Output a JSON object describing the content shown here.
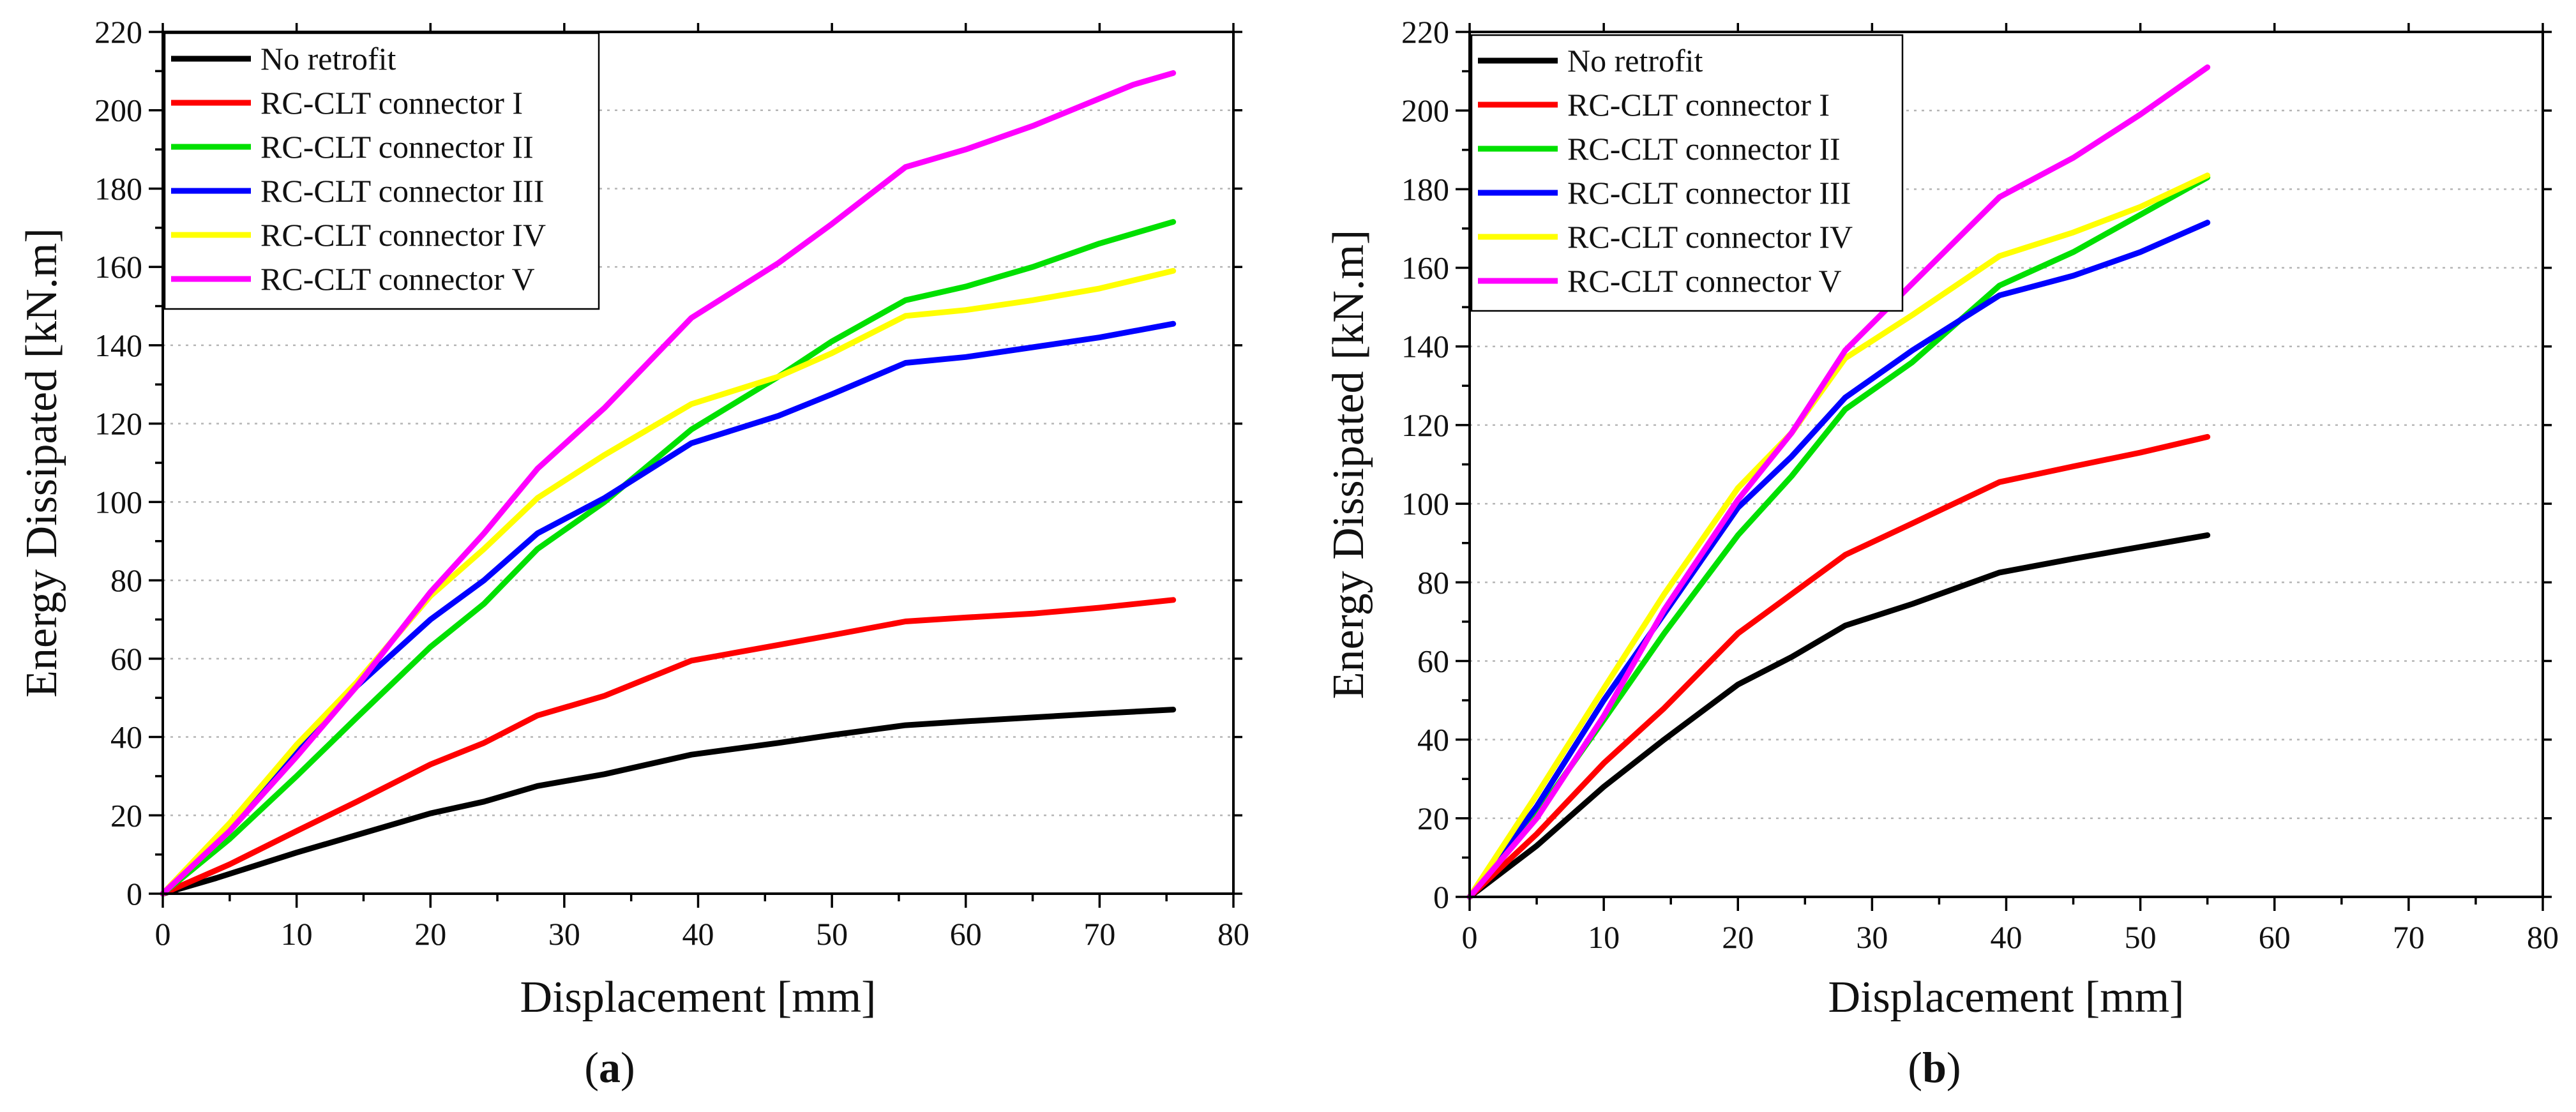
{
  "chart_data": [
    {
      "type": "line",
      "panel_label": {
        "open": "(",
        "letter": "a",
        "close": ")"
      },
      "xlabel": "Displacement [mm]",
      "ylabel": "Energy Dissipated [kN.m]",
      "xlim": [
        0,
        80
      ],
      "ylim": [
        0,
        220
      ],
      "xticks": [
        0,
        10,
        20,
        30,
        40,
        50,
        60,
        70,
        80
      ],
      "yticks": [
        0,
        20,
        40,
        60,
        80,
        100,
        120,
        140,
        160,
        180,
        200,
        220
      ],
      "grid": "horizontal dotted",
      "legend_position": "top-left",
      "series": [
        {
          "name": "No retrofit",
          "color": "#000000",
          "x": [
            0,
            4,
            10,
            14.5,
            20,
            24,
            28,
            33,
            39.5,
            46,
            50,
            55.5,
            60,
            65,
            70,
            75.5
          ],
          "y": [
            0,
            4,
            10.5,
            15,
            20.5,
            23.5,
            27.5,
            30.5,
            35.5,
            38.5,
            40.5,
            43,
            44,
            45,
            46,
            47
          ]
        },
        {
          "name": "RC-CLT connector I",
          "color": "#ff0000",
          "x": [
            0,
            5,
            10,
            14.5,
            20,
            24,
            28,
            33,
            39.5,
            46,
            50,
            55.5,
            60,
            65,
            70,
            75.5
          ],
          "y": [
            0,
            7.5,
            16,
            23.5,
            33,
            38.5,
            45.5,
            50.5,
            59.5,
            63.5,
            66,
            69.5,
            70.5,
            71.5,
            73,
            75
          ]
        },
        {
          "name": "RC-CLT connector II",
          "color": "#00e000",
          "x": [
            0,
            5,
            10,
            14.5,
            20,
            24,
            28,
            33,
            39.5,
            46,
            50,
            55.5,
            60,
            65,
            70,
            75.5
          ],
          "y": [
            0,
            14,
            30,
            45,
            63,
            74,
            88,
            100,
            118.5,
            132,
            141,
            151.5,
            155,
            160,
            166,
            171.5
          ]
        },
        {
          "name": "RC-CLT connector III",
          "color": "#0000ff",
          "x": [
            0,
            5,
            10,
            14.5,
            20,
            24,
            28,
            33,
            39.5,
            46,
            50,
            55.5,
            60,
            65,
            70,
            75.5
          ],
          "y": [
            0,
            17,
            36,
            53,
            70,
            80,
            92,
            101,
            115,
            122,
            127.5,
            135.5,
            137,
            139.5,
            142,
            145.5
          ]
        },
        {
          "name": "RC-CLT connector IV",
          "color": "#ffff00",
          "x": [
            0,
            5,
            10,
            14.5,
            20,
            24,
            28,
            33,
            39.5,
            46,
            50,
            55.5,
            60,
            65,
            70,
            75.5
          ],
          "y": [
            0,
            18,
            38,
            54,
            76,
            88,
            101,
            112,
            125,
            132,
            138,
            147.5,
            149,
            151.5,
            154.5,
            159
          ]
        },
        {
          "name": "RC-CLT connector V",
          "color": "#ff00ff",
          "x": [
            0,
            5,
            10,
            14.5,
            20,
            24,
            28,
            33,
            39.5,
            46,
            50,
            55.5,
            60,
            65,
            70,
            72.5,
            75.5
          ],
          "y": [
            0,
            16,
            35,
            53,
            77,
            92,
            108.5,
            124,
            147,
            161,
            171,
            185.5,
            190,
            196,
            203,
            206.5,
            209.5
          ]
        }
      ]
    },
    {
      "type": "line",
      "panel_label": {
        "open": "(",
        "letter": "b",
        "close": ")"
      },
      "xlabel": "Displacement [mm]",
      "ylabel": "Energy Dissipated [kN.m]",
      "xlim": [
        0,
        80
      ],
      "ylim": [
        0,
        220
      ],
      "xticks": [
        0,
        10,
        20,
        30,
        40,
        50,
        60,
        70,
        80
      ],
      "yticks": [
        0,
        20,
        40,
        60,
        80,
        100,
        120,
        140,
        160,
        180,
        200,
        220
      ],
      "grid": "horizontal dotted",
      "legend_position": "top-left",
      "series": [
        {
          "name": "No retrofit",
          "color": "#000000",
          "x": [
            0,
            5,
            10,
            14.5,
            20,
            24,
            28,
            33,
            39.5,
            45,
            50,
            55
          ],
          "y": [
            0,
            13,
            28,
            40,
            54,
            61,
            69,
            74.5,
            82.5,
            86,
            89,
            92
          ]
        },
        {
          "name": "RC-CLT connector I",
          "color": "#ff0000",
          "x": [
            0,
            5,
            10,
            14.5,
            20,
            24,
            28,
            33,
            39.5,
            45,
            50,
            55
          ],
          "y": [
            0,
            16,
            34,
            48,
            67,
            77,
            87,
            95,
            105.5,
            109.5,
            113,
            117
          ]
        },
        {
          "name": "RC-CLT connector II",
          "color": "#00e000",
          "x": [
            0,
            5,
            10,
            14.5,
            20,
            24,
            28,
            33,
            39.5,
            45,
            50,
            55
          ],
          "y": [
            0,
            21,
            45,
            67,
            92,
            107,
            124,
            136,
            155.5,
            164,
            173.5,
            183
          ]
        },
        {
          "name": "RC-CLT connector III",
          "color": "#0000ff",
          "x": [
            0,
            5,
            10,
            14.5,
            20,
            24,
            28,
            33,
            39.5,
            45,
            50,
            55
          ],
          "y": [
            0,
            23,
            50,
            72,
            99,
            112,
            127,
            139,
            153,
            158,
            164,
            171.5
          ]
        },
        {
          "name": "RC-CLT connector IV",
          "color": "#ffff00",
          "x": [
            0,
            5,
            10,
            14.5,
            20,
            24,
            28,
            33,
            39.5,
            45,
            50,
            55
          ],
          "y": [
            0,
            26,
            53,
            77,
            104,
            118,
            137,
            148,
            163,
            169,
            175.5,
            183.5
          ]
        },
        {
          "name": "RC-CLT connector V",
          "color": "#ff00ff",
          "x": [
            0,
            5,
            10,
            14.5,
            20,
            24,
            28,
            33,
            39.5,
            45,
            50,
            55
          ],
          "y": [
            0,
            20,
            46,
            73,
            101,
            118,
            139,
            156,
            178,
            188,
            199,
            211
          ]
        }
      ]
    }
  ]
}
